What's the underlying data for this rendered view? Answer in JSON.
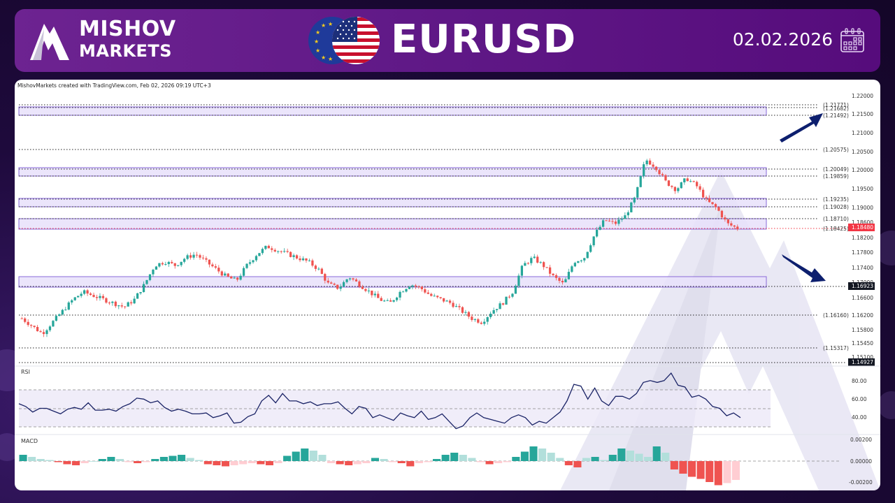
{
  "header": {
    "brand_line1": "MISHOV",
    "brand_line2": "MARKETS",
    "pair": "EURUSD",
    "date": "02.02.2026",
    "icons": [
      "mountain-logo-icon",
      "eu-flag-icon",
      "us-flag-icon",
      "calendar-icon"
    ]
  },
  "chart_panel": {
    "credit": "MishovMarkets created with TradingView.com, Feb 02, 2026 09:19 UTC+3",
    "rsi_title": "RSI",
    "macd_title": "MACD"
  },
  "colors": {
    "bull": "#26a69a",
    "bear": "#ef5350",
    "zone_fill": "#e8e0fa",
    "zone_border": "#8a6ad8",
    "rsi_line": "#1a2366",
    "arrow": "#0d1f6e",
    "last_price_tag": "#f23645",
    "level_tag": "#131722"
  },
  "chart_data": [
    {
      "type": "candlestick",
      "title": "EURUSD",
      "ylabel": "Price",
      "ylim": [
        1.149,
        1.222
      ],
      "y_ticks": [
        "1.22000",
        "1.21500",
        "1.21000",
        "1.20500",
        "1.20000",
        "1.19500",
        "1.19000",
        "1.18600",
        "1.18200",
        "1.17800",
        "1.17400",
        "1.17000",
        "1.16600",
        "1.16200",
        "1.15800",
        "1.15450",
        "1.15100"
      ],
      "last_price": "1.18480",
      "level_tags": [
        "1.16923",
        "1.14927"
      ],
      "horizontal_levels": [
        "1.21771",
        "1.21682",
        "1.21492",
        "1.20575",
        "1.20049",
        "1.19859",
        "1.19235",
        "1.19028",
        "1.18710",
        "1.18425",
        "1.16160",
        "1.15317"
      ],
      "zones": [
        {
          "from": 1.2149,
          "to": 1.2168
        },
        {
          "from": 1.1986,
          "to": 1.2005
        },
        {
          "from": 1.1903,
          "to": 1.1924
        },
        {
          "from": 1.1843,
          "to": 1.1871
        },
        {
          "from": 1.1692,
          "to": 1.172
        }
      ],
      "annotations": [
        "arrow up toward 1.2149-1.2177",
        "arrow down toward 1.16923"
      ],
      "approx_close_path": [
        1.161,
        1.159,
        1.157,
        1.16,
        1.163,
        1.166,
        1.168,
        1.167,
        1.166,
        1.165,
        1.164,
        1.166,
        1.17,
        1.175,
        1.176,
        1.175,
        1.177,
        1.178,
        1.176,
        1.174,
        1.172,
        1.171,
        1.175,
        1.178,
        1.18,
        1.179,
        1.178,
        1.177,
        1.176,
        1.174,
        1.17,
        1.169,
        1.172,
        1.17,
        1.168,
        1.166,
        1.165,
        1.168,
        1.17,
        1.169,
        1.167,
        1.166,
        1.165,
        1.163,
        1.161,
        1.16,
        1.163,
        1.165,
        1.168,
        1.175,
        1.177,
        1.175,
        1.172,
        1.17,
        1.176,
        1.177,
        1.183,
        1.187,
        1.186,
        1.188,
        1.193,
        1.203,
        1.201,
        1.197,
        1.195,
        1.198,
        1.196,
        1.192,
        1.19,
        1.186,
        1.1848
      ]
    },
    {
      "type": "line",
      "title": "RSI",
      "y_ticks": [
        "80.00",
        "60.00",
        "40.00"
      ],
      "bands": [
        70,
        50,
        30
      ],
      "approx_values": [
        55,
        52,
        46,
        50,
        50,
        47,
        44,
        49,
        51,
        49,
        56,
        48,
        48,
        49,
        47,
        52,
        55,
        61,
        60,
        56,
        58,
        51,
        47,
        49,
        47,
        44,
        44,
        45,
        40,
        42,
        45,
        34,
        35,
        41,
        44,
        58,
        64,
        56,
        66,
        58,
        58,
        55,
        57,
        53,
        55,
        55,
        57,
        50,
        44,
        52,
        50,
        40,
        43,
        40,
        37,
        45,
        42,
        40,
        47,
        38,
        40,
        44,
        36,
        28,
        31,
        40,
        45,
        40,
        38,
        36,
        34,
        40,
        43,
        40,
        32,
        36,
        34,
        40,
        46,
        58,
        76,
        74,
        60,
        72,
        58,
        53,
        63,
        63,
        60,
        66,
        78,
        80,
        78,
        80,
        88,
        75,
        73,
        62,
        64,
        60,
        52,
        50,
        42,
        45,
        40
      ]
    },
    {
      "type": "bar",
      "title": "MACD histogram",
      "y_ticks": [
        "0.00200",
        "0.00000",
        "-0.00200"
      ],
      "approx_values": [
        0.0006,
        0.0004,
        0.0002,
        0.0001,
        -0.0001,
        -0.0003,
        -0.0004,
        -0.0002,
        0.0,
        0.0002,
        0.0004,
        0.0002,
        -0.0001,
        -0.0002,
        -0.0001,
        0.0002,
        0.0004,
        0.0005,
        0.0006,
        0.0003,
        0.0001,
        -0.0003,
        -0.0004,
        -0.0005,
        -0.0004,
        -0.0003,
        -0.0002,
        -0.0003,
        -0.0004,
        -0.0002,
        0.0005,
        0.0009,
        0.0012,
        0.001,
        0.0006,
        -0.0002,
        -0.0003,
        -0.0004,
        -0.0003,
        -0.0002,
        0.0003,
        0.0002,
        -0.0001,
        -0.0002,
        -0.0005,
        -0.0002,
        -0.0001,
        0.0002,
        0.0006,
        0.0008,
        0.0006,
        0.0003,
        -0.0001,
        -0.0003,
        -0.0002,
        -0.0001,
        0.0004,
        0.0009,
        0.0014,
        0.0012,
        0.0008,
        0.0003,
        -0.0004,
        -0.0006,
        0.0003,
        0.0004,
        0.0001,
        0.0006,
        0.0012,
        0.001,
        0.0007,
        0.0004,
        0.0014,
        0.0008,
        -0.0008,
        -0.0012,
        -0.0015,
        -0.0017,
        -0.002,
        -0.0023,
        -0.0021,
        -0.0018
      ]
    }
  ]
}
